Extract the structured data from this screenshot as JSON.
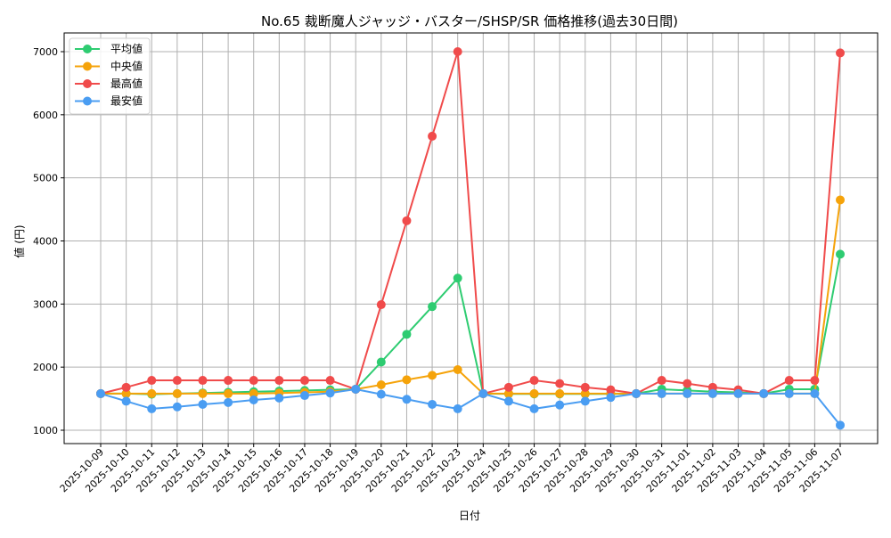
{
  "chart_data": {
    "type": "line",
    "title": "No.65 裁断魔人ジャッジ・バスター/SHSP/SR 価格推移(過去30日間)",
    "xlabel": "日付",
    "ylabel": "値 (円)",
    "ylim": [
      800,
      7300
    ],
    "yticks": [
      1000,
      2000,
      3000,
      4000,
      5000,
      6000,
      7000
    ],
    "grid": true,
    "legend_position": "upper left",
    "categories": [
      "2025-10-09",
      "2025-10-10",
      "2025-10-11",
      "2025-10-12",
      "2025-10-13",
      "2025-10-14",
      "2025-10-15",
      "2025-10-16",
      "2025-10-17",
      "2025-10-18",
      "2025-10-19",
      "2025-10-20",
      "2025-10-21",
      "2025-10-22",
      "2025-10-23",
      "2025-10-24",
      "2025-10-25",
      "2025-10-26",
      "2025-10-27",
      "2025-10-28",
      "2025-10-29",
      "2025-10-30",
      "2025-10-31",
      "2025-11-01",
      "2025-11-02",
      "2025-11-03",
      "2025-11-04",
      "2025-11-05",
      "2025-11-06",
      "2025-11-07"
    ],
    "series": [
      {
        "name": "平均値",
        "color": "#2ecc71",
        "values": [
          1580,
          1580,
          1570,
          1580,
          1590,
          1600,
          1610,
          1620,
          1630,
          1640,
          1650,
          2080,
          2520,
          2960,
          3410,
          1580,
          1575,
          1575,
          1575,
          1575,
          1575,
          1580,
          1650,
          1630,
          1610,
          1600,
          1580,
          1650,
          1650,
          3790
        ]
      },
      {
        "name": "中央値",
        "color": "#f5a30a",
        "values": [
          1580,
          1580,
          1580,
          1580,
          1580,
          1580,
          1580,
          1590,
          1600,
          1610,
          1650,
          1720,
          1800,
          1870,
          1960,
          1580,
          1580,
          1580,
          1580,
          1580,
          1580,
          1580,
          1580,
          1580,
          1580,
          1580,
          1580,
          1580,
          1580,
          4650
        ]
      },
      {
        "name": "最高値",
        "color": "#f04b4b",
        "values": [
          1580,
          1680,
          1790,
          1790,
          1790,
          1790,
          1790,
          1790,
          1790,
          1790,
          1650,
          2990,
          4320,
          5660,
          7000,
          1580,
          1680,
          1790,
          1740,
          1680,
          1640,
          1580,
          1790,
          1740,
          1680,
          1640,
          1580,
          1790,
          1790,
          6980
        ]
      },
      {
        "name": "最安値",
        "color": "#4a9df2",
        "values": [
          1580,
          1460,
          1340,
          1370,
          1410,
          1440,
          1480,
          1510,
          1550,
          1590,
          1650,
          1570,
          1490,
          1410,
          1340,
          1580,
          1460,
          1340,
          1400,
          1460,
          1520,
          1580,
          1580,
          1580,
          1580,
          1580,
          1580,
          1580,
          1580,
          1080
        ]
      }
    ]
  }
}
